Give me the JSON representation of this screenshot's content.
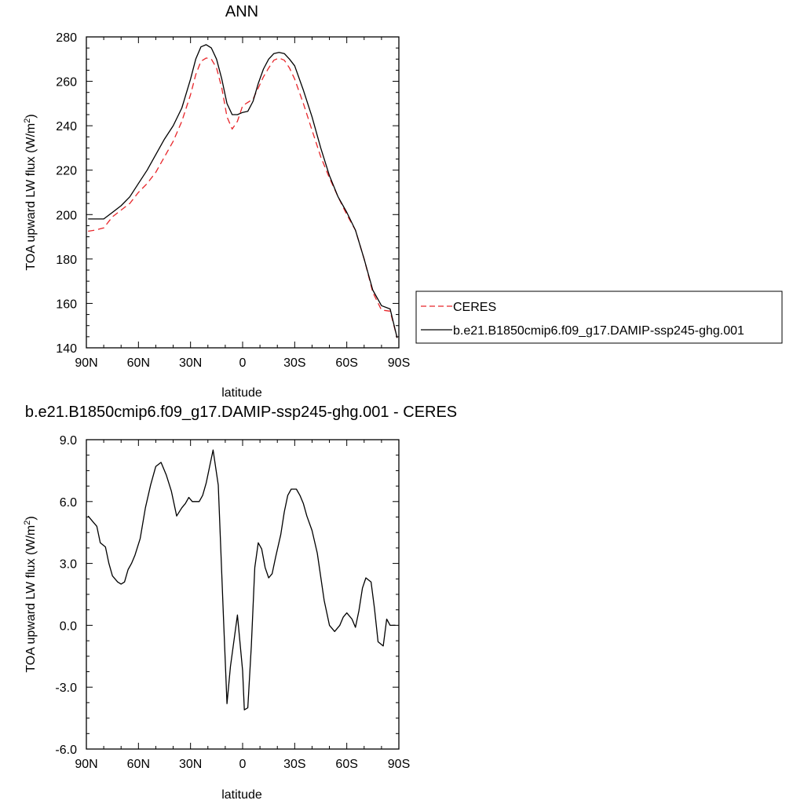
{
  "chart_data": [
    {
      "type": "line",
      "title": "ANN",
      "xlabel": "latitude",
      "ylabel": "TOA upward LW flux (W/m",
      "ylabel_sup": "2",
      "ylabel_end": ")",
      "xlim": [
        90,
        -90
      ],
      "ylim": [
        140,
        280
      ],
      "xticks": [
        90,
        60,
        30,
        0,
        -30,
        -60,
        -90
      ],
      "xtick_labels": [
        "90N",
        "60N",
        "30N",
        "0",
        "30S",
        "60S",
        "90S"
      ],
      "yticks": [
        140,
        160,
        180,
        200,
        220,
        240,
        260,
        280
      ],
      "ytick_labels": [
        "140",
        "160",
        "180",
        "200",
        "220",
        "240",
        "260",
        "280"
      ],
      "legend": {
        "placement": "right",
        "entries": [
          "CERES",
          "b.e21.B1850cmip6.f09_g17.DAMIP-ssp245-ghg.001"
        ]
      },
      "series": [
        {
          "name": "CERES",
          "color": "#e8262a",
          "dash": true,
          "x": [
            89,
            85,
            80,
            75,
            70,
            65,
            60,
            55,
            50,
            45,
            40,
            35,
            30,
            27,
            24,
            21,
            18,
            15,
            12,
            9,
            6,
            3,
            0,
            -3,
            -6,
            -9,
            -12,
            -15,
            -18,
            -21,
            -24,
            -27,
            -30,
            -35,
            -40,
            -45,
            -50,
            -55,
            -60,
            -65,
            -70,
            -75,
            -80,
            -85,
            -89
          ],
          "values": [
            192.5,
            193,
            194,
            199,
            202,
            205,
            210,
            214,
            219,
            226,
            233,
            242,
            254,
            263,
            269,
            270.5,
            270,
            266,
            257,
            244,
            238.5,
            242,
            249,
            250.5,
            252,
            257,
            262,
            266,
            269.5,
            270.5,
            269.5,
            266,
            261,
            250,
            238,
            226,
            216.5,
            208,
            200,
            193,
            180,
            165,
            157,
            156.5,
            144.5
          ]
        },
        {
          "name": "b.e21.B1850cmip6.f09_g17.DAMIP-ssp245-ghg.001",
          "color": "#000000",
          "dash": false,
          "x": [
            89,
            85,
            80,
            75,
            70,
            65,
            60,
            55,
            50,
            45,
            40,
            35,
            30,
            27,
            24,
            21,
            18,
            15,
            12,
            9,
            6,
            3,
            0,
            -3,
            -6,
            -9,
            -12,
            -15,
            -18,
            -21,
            -24,
            -27,
            -30,
            -35,
            -40,
            -45,
            -50,
            -55,
            -60,
            -65,
            -70,
            -75,
            -80,
            -85,
            -89
          ],
          "values": [
            198,
            198,
            198,
            201,
            204,
            208,
            214,
            220,
            227,
            234,
            240,
            248,
            261,
            270,
            275.5,
            276.5,
            275,
            270,
            261,
            250,
            245,
            245,
            246,
            246.5,
            251,
            259,
            265.5,
            270,
            272.5,
            273,
            272.5,
            270,
            267,
            256,
            244,
            230,
            217.5,
            208,
            201,
            193,
            180,
            166,
            159,
            157.5,
            144.5
          ]
        }
      ]
    },
    {
      "type": "line",
      "title": "b.e21.B1850cmip6.f09_g17.DAMIP-ssp245-ghg.001 - CERES",
      "xlabel": "latitude",
      "ylabel": "TOA upward LW flux (W/m",
      "ylabel_sup": "2",
      "ylabel_end": ")",
      "xlim": [
        90,
        -90
      ],
      "ylim": [
        -6,
        9
      ],
      "xticks": [
        90,
        60,
        30,
        0,
        -30,
        -60,
        -90
      ],
      "xtick_labels": [
        "90N",
        "60N",
        "30N",
        "0",
        "30S",
        "60S",
        "90S"
      ],
      "yticks": [
        -6,
        -3,
        0,
        3,
        6,
        9
      ],
      "ytick_labels": [
        "-6.0",
        "-3.0",
        "0.0",
        "3.0",
        "6.0",
        "9.0"
      ],
      "series": [
        {
          "color": "#000000",
          "x": [
            89,
            86,
            84,
            82,
            79,
            77,
            75,
            72,
            70,
            68,
            66,
            64,
            62,
            59,
            56,
            53,
            50,
            47,
            44,
            41,
            38,
            35,
            33,
            31,
            29,
            27,
            25,
            23,
            21,
            19,
            17,
            14,
            11,
            9,
            7,
            3,
            0,
            -1,
            -3,
            -5,
            -7,
            -9,
            -11,
            -13,
            -15,
            -17,
            -19,
            -22,
            -24,
            -26,
            -28,
            -31,
            -33,
            -35,
            -37,
            -40,
            -43,
            -47,
            -50,
            -53,
            -56,
            -58,
            -60,
            -63,
            -65,
            -67,
            -69,
            -71,
            -74,
            -76,
            -78,
            -81,
            -83,
            -85,
            -88
          ],
          "values": [
            5.3,
            5,
            4.8,
            4.0,
            3.8,
            3.0,
            2.4,
            2.1,
            2.0,
            2.1,
            2.7,
            3.0,
            3.4,
            4.2,
            5.7,
            6.8,
            7.7,
            7.9,
            7.3,
            6.5,
            5.3,
            5.7,
            5.9,
            6.2,
            6.0,
            6.0,
            6.0,
            6.3,
            6.9,
            7.7,
            8.5,
            6.8,
            0.3,
            -3.8,
            -2.0,
            0.5,
            -2.2,
            -4.1,
            -4.0,
            -1.0,
            2.8,
            4.0,
            3.7,
            2.8,
            2.3,
            2.5,
            3.3,
            4.4,
            5.5,
            6.3,
            6.6,
            6.6,
            6.3,
            5.9,
            5.3,
            4.6,
            3.5,
            1.2,
            0,
            -0.3,
            0,
            0.4,
            0.6,
            0.3,
            -0.1,
            0.7,
            1.8,
            2.3,
            2.1,
            0.8,
            -0.8,
            -1.0,
            0.3,
            0,
            0
          ]
        }
      ]
    }
  ]
}
